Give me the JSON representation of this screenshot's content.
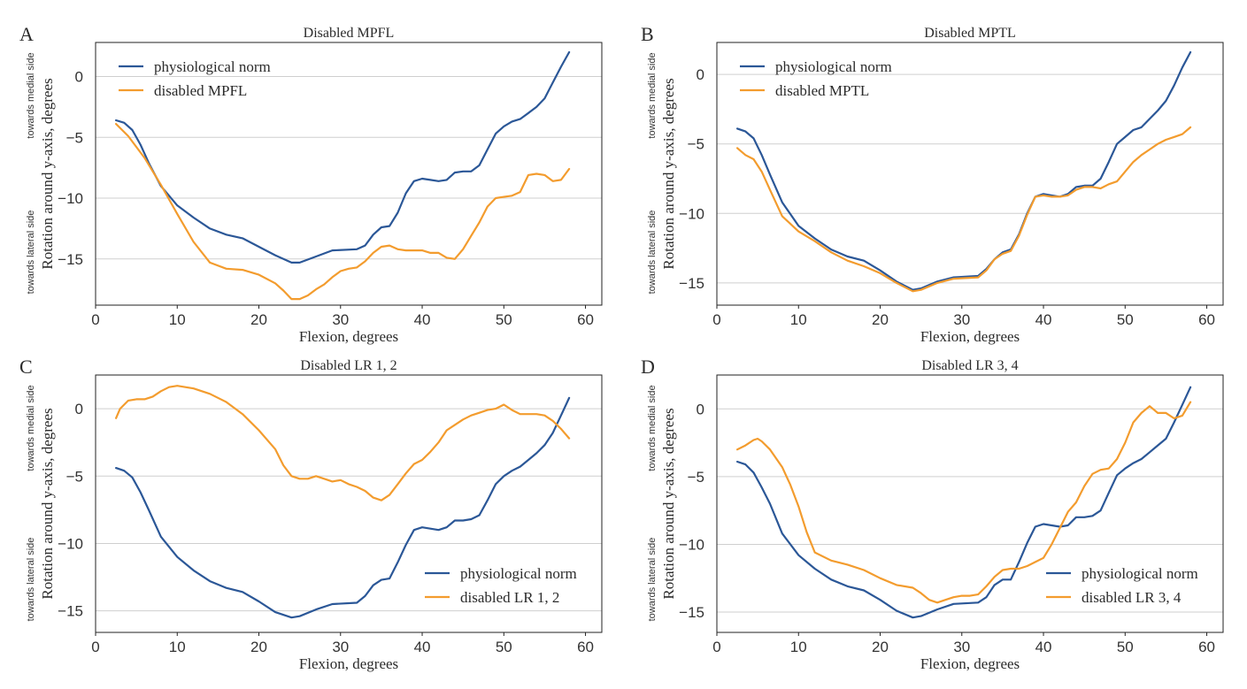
{
  "chart_data": [
    {
      "type": "line",
      "panel": "A",
      "title": "Disabled MPFL",
      "xlabel": "Flexion, degrees",
      "ylabel": "Rotation around y-axis, degrees",
      "ylabel_upper": "towards medial side",
      "ylabel_lower": "towards lateral side",
      "xlim": [
        0,
        62
      ],
      "ylim": [
        -18.8,
        2.8
      ],
      "xticks": [
        0,
        10,
        20,
        30,
        40,
        50,
        60
      ],
      "yticks": [
        0,
        -5,
        -10,
        -15
      ],
      "grid": "horizontal",
      "legend": "top-left",
      "series": [
        {
          "name": "physiological norm",
          "color": "#2b5797",
          "x": [
            2.5,
            3.5,
            4.5,
            5.5,
            6.5,
            8,
            10,
            12,
            14,
            16,
            18,
            20,
            22,
            24,
            25,
            27,
            29,
            32,
            33,
            34,
            35,
            36,
            37,
            38,
            39,
            40,
            41,
            42,
            43,
            44,
            45,
            46,
            47,
            48,
            49,
            50,
            51,
            52,
            53,
            54,
            55,
            56,
            57,
            58
          ],
          "y": [
            -3.6,
            -3.8,
            -4.4,
            -5.6,
            -7.1,
            -9.0,
            -10.6,
            -11.6,
            -12.5,
            -13.0,
            -13.3,
            -14.0,
            -14.7,
            -15.3,
            -15.3,
            -14.8,
            -14.3,
            -14.2,
            -13.9,
            -13.0,
            -12.4,
            -12.3,
            -11.2,
            -9.6,
            -8.6,
            -8.4,
            -8.5,
            -8.6,
            -8.5,
            -7.9,
            -7.8,
            -7.8,
            -7.3,
            -6.0,
            -4.7,
            -4.1,
            -3.7,
            -3.5,
            -3.0,
            -2.5,
            -1.8,
            -0.5,
            0.8,
            2.0
          ]
        },
        {
          "name": "disabled MPFL",
          "color": "#f39c2e",
          "x": [
            2.5,
            4,
            6,
            8,
            10,
            12,
            14,
            16,
            18,
            20,
            22,
            23,
            24,
            25,
            26,
            27,
            28,
            29,
            30,
            31,
            32,
            33,
            34,
            35,
            36,
            37,
            38,
            39,
            40,
            41,
            42,
            43,
            44,
            45,
            46,
            47,
            48,
            49,
            50,
            51,
            52,
            53,
            54,
            55,
            56,
            57,
            58
          ],
          "y": [
            -3.9,
            -4.9,
            -6.7,
            -8.9,
            -11.3,
            -13.6,
            -15.3,
            -15.8,
            -15.9,
            -16.3,
            -17.0,
            -17.6,
            -18.3,
            -18.3,
            -18.0,
            -17.5,
            -17.1,
            -16.5,
            -16.0,
            -15.8,
            -15.7,
            -15.2,
            -14.5,
            -14.0,
            -13.9,
            -14.2,
            -14.3,
            -14.3,
            -14.3,
            -14.5,
            -14.5,
            -14.9,
            -15.0,
            -14.2,
            -13.1,
            -12.0,
            -10.7,
            -10.0,
            -9.9,
            -9.8,
            -9.5,
            -8.1,
            -8.0,
            -8.1,
            -8.6,
            -8.5,
            -7.6
          ]
        }
      ]
    },
    {
      "type": "line",
      "panel": "B",
      "title": "Disabled MPTL",
      "xlabel": "Flexion, degrees",
      "ylabel": "Rotation around y-axis, degrees",
      "ylabel_upper": "towards medial side",
      "ylabel_lower": "towards lateral side",
      "xlim": [
        0,
        62
      ],
      "ylim": [
        -16.6,
        2.3
      ],
      "xticks": [
        0,
        10,
        20,
        30,
        40,
        50,
        60
      ],
      "yticks": [
        0,
        -5,
        -10,
        -15
      ],
      "grid": "horizontal",
      "legend": "top-left",
      "series": [
        {
          "name": "physiological norm",
          "color": "#2b5797",
          "x": [
            2.5,
            3.5,
            4.5,
            5.5,
            6.5,
            8,
            10,
            12,
            14,
            16,
            18,
            20,
            22,
            24,
            25,
            27,
            29,
            32,
            33,
            34,
            35,
            36,
            37,
            38,
            39,
            40,
            41,
            42,
            43,
            44,
            45,
            46,
            47,
            48,
            49,
            50,
            51,
            52,
            53,
            54,
            55,
            56,
            57,
            58
          ],
          "y": [
            -3.9,
            -4.1,
            -4.6,
            -5.8,
            -7.2,
            -9.2,
            -10.9,
            -11.8,
            -12.6,
            -13.1,
            -13.4,
            -14.1,
            -14.9,
            -15.5,
            -15.4,
            -14.9,
            -14.6,
            -14.5,
            -14.0,
            -13.3,
            -12.8,
            -12.6,
            -11.5,
            -10.0,
            -8.8,
            -8.6,
            -8.7,
            -8.8,
            -8.6,
            -8.1,
            -8.0,
            -8.0,
            -7.5,
            -6.3,
            -5.0,
            -4.5,
            -4.0,
            -3.8,
            -3.2,
            -2.6,
            -1.9,
            -0.8,
            0.5,
            1.6
          ]
        },
        {
          "name": "disabled MPTL",
          "color": "#f39c2e",
          "x": [
            2.5,
            3.5,
            4.5,
            5.5,
            6.5,
            8,
            10,
            12,
            14,
            16,
            18,
            20,
            22,
            24,
            25,
            27,
            29,
            32,
            33,
            34,
            35,
            36,
            37,
            38,
            39,
            40,
            41,
            42,
            43,
            44,
            45,
            46,
            47,
            48,
            49,
            50,
            51,
            52,
            53,
            54,
            55,
            56,
            57,
            58
          ],
          "y": [
            -5.3,
            -5.8,
            -6.1,
            -7.0,
            -8.3,
            -10.2,
            -11.3,
            -12.0,
            -12.8,
            -13.4,
            -13.8,
            -14.3,
            -15.0,
            -15.6,
            -15.5,
            -15.0,
            -14.7,
            -14.6,
            -14.1,
            -13.3,
            -12.9,
            -12.7,
            -11.6,
            -10.1,
            -8.8,
            -8.7,
            -8.8,
            -8.8,
            -8.7,
            -8.3,
            -8.1,
            -8.1,
            -8.2,
            -7.9,
            -7.7,
            -7.0,
            -6.3,
            -5.8,
            -5.4,
            -5.0,
            -4.7,
            -4.5,
            -4.3,
            -3.8
          ]
        }
      ]
    },
    {
      "type": "line",
      "panel": "C",
      "title": "Disabled LR 1, 2",
      "xlabel": "Flexion, degrees",
      "ylabel": "Rotation around y-axis, degrees",
      "ylabel_upper": "towards medial side",
      "ylabel_lower": "towards lateral side",
      "xlim": [
        0,
        62
      ],
      "ylim": [
        -16.6,
        2.5
      ],
      "xticks": [
        0,
        10,
        20,
        30,
        40,
        50,
        60
      ],
      "yticks": [
        0,
        -5,
        -10,
        -15
      ],
      "grid": "horizontal",
      "legend": "bottom-right",
      "series": [
        {
          "name": "physiological norm",
          "color": "#2b5797",
          "x": [
            2.5,
            3.5,
            4.5,
            5.5,
            6.5,
            8,
            10,
            12,
            14,
            16,
            18,
            20,
            22,
            24,
            25,
            27,
            29,
            32,
            33,
            34,
            35,
            36,
            37,
            38,
            39,
            40,
            41,
            42,
            43,
            44,
            45,
            46,
            47,
            48,
            49,
            50,
            51,
            52,
            53,
            54,
            55,
            56,
            57,
            58
          ],
          "y": [
            -4.4,
            -4.6,
            -5.1,
            -6.2,
            -7.5,
            -9.5,
            -11.0,
            -12.0,
            -12.8,
            -13.3,
            -13.6,
            -14.3,
            -15.1,
            -15.5,
            -15.4,
            -14.9,
            -14.5,
            -14.4,
            -13.9,
            -13.1,
            -12.7,
            -12.6,
            -11.4,
            -10.1,
            -9.0,
            -8.8,
            -8.9,
            -9.0,
            -8.8,
            -8.3,
            -8.3,
            -8.2,
            -7.9,
            -6.8,
            -5.6,
            -5.0,
            -4.6,
            -4.3,
            -3.8,
            -3.3,
            -2.7,
            -1.8,
            -0.5,
            0.8
          ]
        },
        {
          "name": "disabled LR 1, 2",
          "color": "#f39c2e",
          "x": [
            2.5,
            3,
            4,
            5,
            6,
            7,
            8,
            9,
            10,
            11,
            12,
            14,
            16,
            18,
            20,
            22,
            23,
            24,
            25,
            26,
            27,
            28,
            29,
            30,
            31,
            32,
            33,
            34,
            35,
            36,
            37,
            38,
            39,
            40,
            41,
            42,
            43,
            44,
            45,
            46,
            47,
            48,
            49,
            50,
            51,
            52,
            53,
            54,
            55,
            56,
            57,
            58
          ],
          "y": [
            -0.7,
            0.0,
            0.6,
            0.7,
            0.7,
            0.9,
            1.3,
            1.6,
            1.7,
            1.6,
            1.5,
            1.1,
            0.5,
            -0.4,
            -1.6,
            -3.0,
            -4.2,
            -5.0,
            -5.2,
            -5.2,
            -5.0,
            -5.2,
            -5.4,
            -5.3,
            -5.6,
            -5.8,
            -6.1,
            -6.6,
            -6.8,
            -6.4,
            -5.6,
            -4.8,
            -4.1,
            -3.8,
            -3.2,
            -2.5,
            -1.6,
            -1.2,
            -0.8,
            -0.5,
            -0.3,
            -0.1,
            0.0,
            0.3,
            -0.1,
            -0.4,
            -0.4,
            -0.4,
            -0.5,
            -0.9,
            -1.5,
            -2.2
          ]
        }
      ]
    },
    {
      "type": "line",
      "panel": "D",
      "title": "Disabled LR 3, 4",
      "xlabel": "Flexion, degrees",
      "ylabel": "Rotation around y-axis, degrees",
      "ylabel_upper": "towards medial side",
      "ylabel_lower": "towards lateral side",
      "xlim": [
        0,
        62
      ],
      "ylim": [
        -16.5,
        2.5
      ],
      "xticks": [
        0,
        10,
        20,
        30,
        40,
        50,
        60
      ],
      "yticks": [
        0,
        -5,
        -10,
        -15
      ],
      "grid": "horizontal",
      "legend": "bottom-right",
      "series": [
        {
          "name": "physiological norm",
          "color": "#2b5797",
          "x": [
            2.5,
            3.5,
            4.5,
            5.5,
            6.5,
            8,
            10,
            12,
            14,
            16,
            18,
            20,
            22,
            24,
            25,
            27,
            29,
            32,
            33,
            34,
            35,
            36,
            37,
            38,
            39,
            40,
            41,
            42,
            43,
            44,
            45,
            46,
            47,
            48,
            49,
            50,
            51,
            52,
            53,
            54,
            55,
            56,
            57,
            58
          ],
          "y": [
            -3.9,
            -4.1,
            -4.7,
            -5.8,
            -7.0,
            -9.2,
            -10.8,
            -11.8,
            -12.6,
            -13.1,
            -13.4,
            -14.1,
            -14.9,
            -15.4,
            -15.3,
            -14.8,
            -14.4,
            -14.3,
            -13.9,
            -13.0,
            -12.6,
            -12.6,
            -11.3,
            -9.9,
            -8.7,
            -8.5,
            -8.6,
            -8.7,
            -8.6,
            -8.0,
            -8.0,
            -7.9,
            -7.5,
            -6.2,
            -4.9,
            -4.4,
            -4.0,
            -3.7,
            -3.2,
            -2.7,
            -2.2,
            -1.0,
            0.3,
            1.6
          ]
        },
        {
          "name": "disabled LR 3, 4",
          "color": "#f39c2e",
          "x": [
            2.5,
            3.5,
            4.5,
            5,
            5.5,
            6.5,
            8,
            9,
            10,
            11,
            12,
            14,
            16,
            18,
            20,
            22,
            24,
            25,
            26,
            27,
            28,
            29,
            30,
            31,
            32,
            33,
            34,
            35,
            36,
            37,
            38,
            39,
            40,
            41,
            42,
            43,
            44,
            45,
            46,
            47,
            48,
            49,
            50,
            51,
            52,
            53,
            54,
            55,
            56,
            57,
            58
          ],
          "y": [
            -3.0,
            -2.7,
            -2.3,
            -2.2,
            -2.4,
            -3.0,
            -4.3,
            -5.6,
            -7.2,
            -9.1,
            -10.6,
            -11.2,
            -11.5,
            -11.9,
            -12.5,
            -13.0,
            -13.2,
            -13.6,
            -14.1,
            -14.3,
            -14.1,
            -13.9,
            -13.8,
            -13.8,
            -13.7,
            -13.1,
            -12.4,
            -11.9,
            -11.8,
            -11.8,
            -11.6,
            -11.3,
            -11.0,
            -10.0,
            -8.8,
            -7.6,
            -6.9,
            -5.7,
            -4.8,
            -4.5,
            -4.4,
            -3.7,
            -2.5,
            -1.0,
            -0.3,
            0.2,
            -0.3,
            -0.3,
            -0.7,
            -0.5,
            0.5
          ]
        }
      ]
    }
  ]
}
